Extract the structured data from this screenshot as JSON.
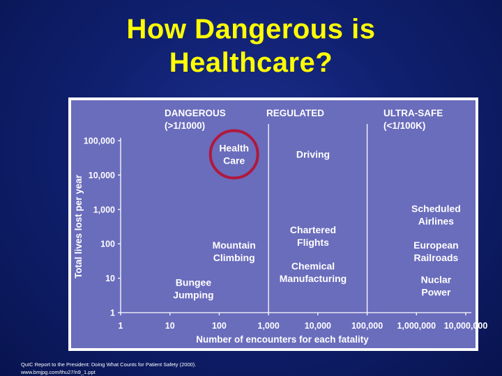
{
  "slide": {
    "title_line1": "How Dangerous is",
    "title_line2": "Healthcare?",
    "source_line1": "QuIC Report to the President: Doing What Counts for Patient Safety (2000).",
    "source_line2": "www.bmjpg.com/thu27/n9_1.ppt"
  },
  "colors": {
    "background": "#0c1a66",
    "title": "#ffff00",
    "plot_area": "#6a6cbc",
    "highlight_circle": "#b0183c"
  },
  "chart_data": {
    "type": "scatter",
    "title": "",
    "xlabel": "Number of encounters for each fatality",
    "ylabel": "Total lives lost per year",
    "x_scale": "log",
    "y_scale": "log",
    "x_ticks": [
      1,
      10,
      100,
      1000,
      10000,
      100000,
      1000000,
      10000000
    ],
    "x_tick_labels": [
      "1",
      "10",
      "100",
      "1,000",
      "10,000",
      "100,000",
      "1,000,000",
      "10,000,000"
    ],
    "y_ticks": [
      1,
      10,
      100,
      1000,
      10000,
      100000
    ],
    "y_tick_labels": [
      "1",
      "10",
      "100",
      "1,000",
      "10,000",
      "100,000"
    ],
    "xlim": [
      1,
      10000000
    ],
    "ylim": [
      1,
      100000
    ],
    "zones": [
      {
        "line1": "DANGEROUS",
        "line2": "(>1/1000)",
        "x_from": 1,
        "x_to": 1000
      },
      {
        "line1": "REGULATED",
        "line2": "",
        "x_from": 1000,
        "x_to": 100000
      },
      {
        "line1": "ULTRA-SAFE",
        "line2": "(<1/100K)",
        "x_from": 100000,
        "x_to": 10000000
      }
    ],
    "zone_boundaries": [
      1000,
      100000
    ],
    "points": [
      {
        "lines": [
          "Health",
          "Care"
        ],
        "x": 200,
        "y": 40000,
        "highlighted": true
      },
      {
        "lines": [
          "Driving"
        ],
        "x": 8000,
        "y": 40000,
        "highlighted": false
      },
      {
        "lines": [
          "Scheduled",
          "Airlines"
        ],
        "x": 2500000,
        "y": 700,
        "highlighted": false
      },
      {
        "lines": [
          "Chartered",
          "Flights"
        ],
        "x": 8000,
        "y": 170,
        "highlighted": false
      },
      {
        "lines": [
          "Mountain",
          "Climbing"
        ],
        "x": 200,
        "y": 60,
        "highlighted": false
      },
      {
        "lines": [
          "Chemical",
          "Manufacturing"
        ],
        "x": 8000,
        "y": 15,
        "highlighted": false
      },
      {
        "lines": [
          "European",
          "Railroads"
        ],
        "x": 2500000,
        "y": 60,
        "highlighted": false
      },
      {
        "lines": [
          "Bungee",
          "Jumping"
        ],
        "x": 30,
        "y": 5,
        "highlighted": false
      },
      {
        "lines": [
          "Nuclar",
          "Power"
        ],
        "x": 2500000,
        "y": 6,
        "highlighted": false
      }
    ]
  }
}
